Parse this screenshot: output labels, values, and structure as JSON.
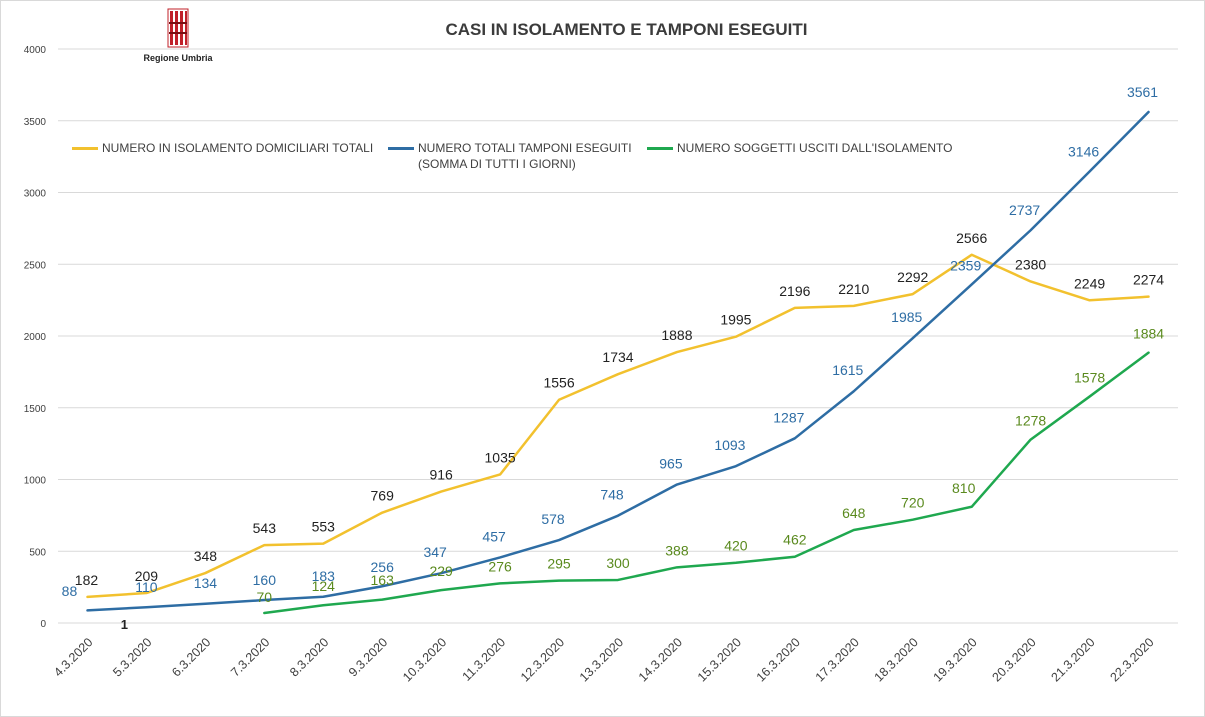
{
  "title": "CASI IN ISOLAMENTO E TAMPONI ESEGUITI",
  "logo": {
    "label": "Regione Umbria",
    "icon": "regione-umbria-crest-icon",
    "color": "#c0202a"
  },
  "colors": {
    "yellow": "#F2C12E",
    "blue": "#2E6DA4",
    "green": "#1FA84F",
    "grid": "#d9d9d9",
    "axis_text": "#404040"
  },
  "legend": [
    {
      "label": "NUMERO IN ISOLAMENTO DOMICILIARI TOTALI",
      "label2": "",
      "color": "#F2C12E"
    },
    {
      "label": "NUMERO TOTALI TAMPONI ESEGUITI",
      "label2": "(SOMMA DI TUTTI I GIORNI)",
      "color": "#2E6DA4"
    },
    {
      "label": "NUMERO SOGGETTI USCITI DALL'ISOLAMENTO",
      "label2": "",
      "color": "#1FA84F"
    }
  ],
  "chart_data": {
    "type": "line",
    "title": "CASI IN ISOLAMENTO E TAMPONI ESEGUITI",
    "categories": [
      "4.3.2020",
      "5.3.2020",
      "6.3.2020",
      "7.3.2020",
      "8.3.2020",
      "9.3.2020",
      "10.3.2020",
      "11.3.2020",
      "12.3.2020",
      "13.3.2020",
      "14.3.2020",
      "15.3.2020",
      "16.3.2020",
      "17.3.2020",
      "18.3.2020",
      "19.3.2020",
      "20.3.2020",
      "21.3.2020",
      "22.3.2020"
    ],
    "ylim": [
      0,
      4000
    ],
    "yticks": [
      0,
      500,
      1000,
      1500,
      2000,
      2500,
      3000,
      3500,
      4000
    ],
    "grid": true,
    "legend_position": "top-left",
    "series": [
      {
        "name": "NUMERO IN ISOLAMENTO DOMICILIARI TOTALI",
        "color": "#F2C12E",
        "label_color": "#222222",
        "values": [
          182,
          209,
          348,
          543,
          553,
          769,
          916,
          1035,
          1556,
          1734,
          1888,
          1995,
          2196,
          2210,
          2292,
          2566,
          2380,
          2249,
          2274
        ]
      },
      {
        "name": "NUMERO TOTALI TAMPONI ESEGUITI (SOMMA DI TUTTI I GIORNI)",
        "color": "#2E6DA4",
        "label_color": "#2E6DA4",
        "values": [
          88,
          110,
          134,
          160,
          183,
          256,
          347,
          457,
          578,
          748,
          965,
          1093,
          1287,
          1615,
          1985,
          2359,
          2737,
          3146,
          3561
        ]
      },
      {
        "name": "NUMERO SOGGETTI USCITI DALL'ISOLAMENTO",
        "color": "#1FA84F",
        "label_color": "#5A8A1E",
        "values": [
          null,
          null,
          null,
          70,
          124,
          163,
          229,
          276,
          295,
          300,
          388,
          420,
          462,
          648,
          720,
          810,
          1278,
          1578,
          1884
        ]
      }
    ],
    "annotations": [
      {
        "text": "1",
        "x": "5.3.2020",
        "y": 0
      }
    ]
  }
}
